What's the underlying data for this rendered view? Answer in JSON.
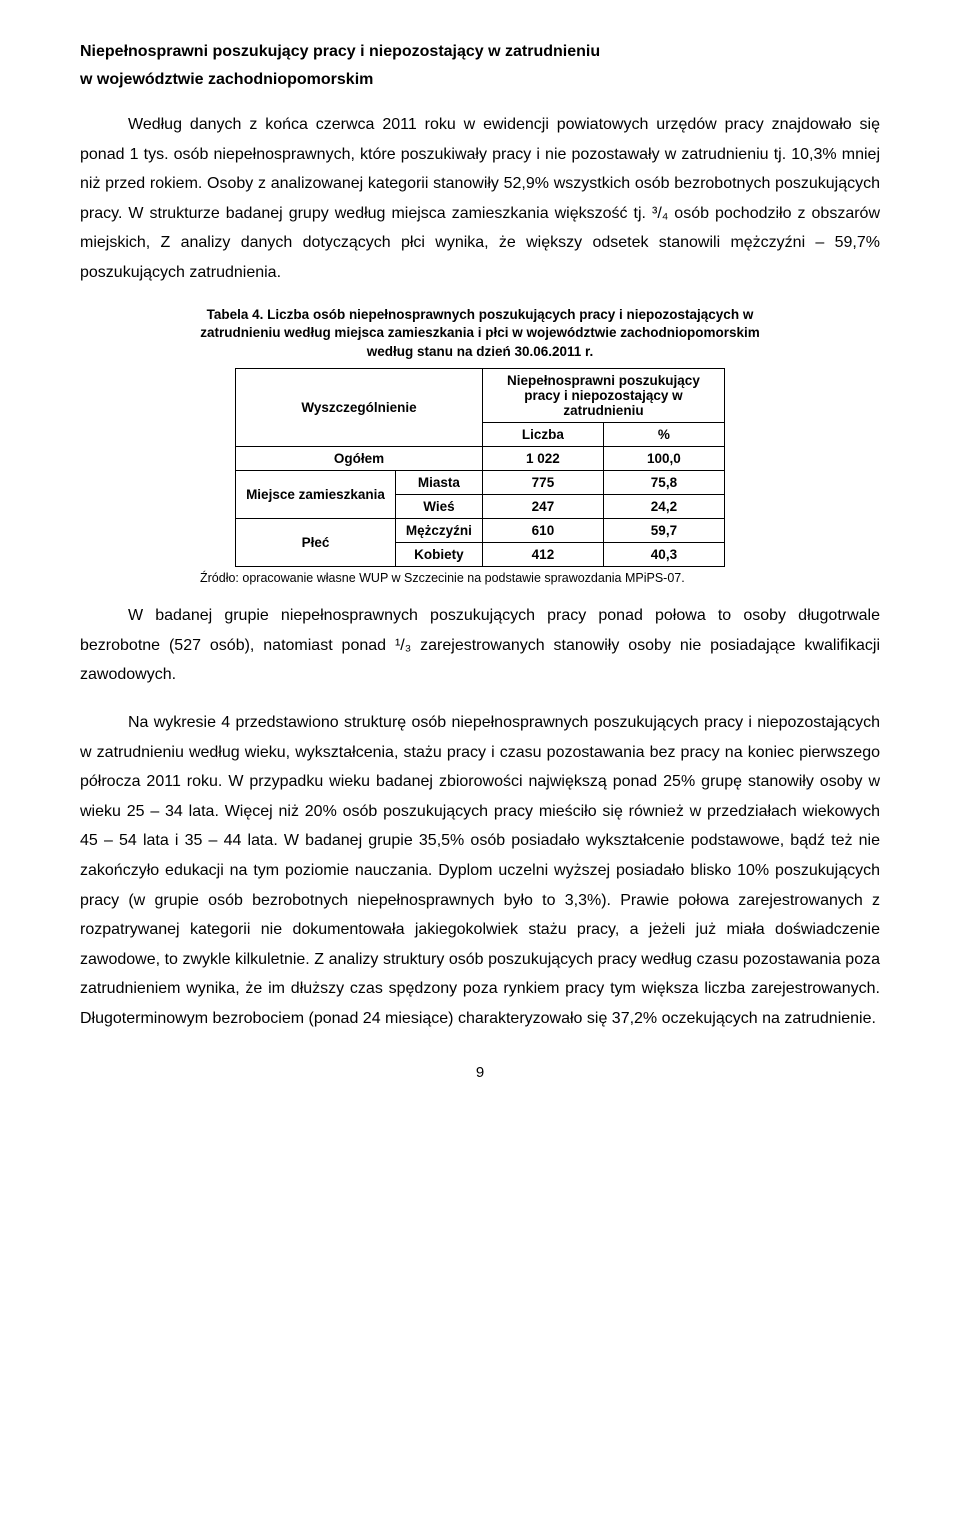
{
  "section": {
    "title": "Niepełnosprawni poszukujący pracy i niepozostający w zatrudnieniu",
    "subtitle": "w województwie zachodniopomorskim"
  },
  "para1": "Według danych z końca czerwca 2011 roku w ewidencji powiatowych urzędów pracy znajdowało się ponad 1 tys. osób niepełnosprawnych, które poszukiwały pracy i nie pozostawały w zatrudnieniu tj. 10,3% mniej niż przed rokiem. Osoby z analizowanej kategorii stanowiły 52,9% wszystkich osób bezrobotnych poszukujących pracy. W strukturze badanej grupy według miejsca zamieszkania większość tj. ³/₄ osób pochodziło z obszarów miejskich, Z analizy danych dotyczących płci wynika, że większy odsetek stanowili mężczyźni – 59,7% poszukujących zatrudnienia.",
  "table": {
    "caption": "Tabela 4. Liczba osób niepełnosprawnych poszukujących pracy i niepozostających w zatrudnieniu według miejsca zamieszkania i płci w województwie zachodniopomorskim według stanu na dzień 30.06.2011 r.",
    "header_wysz": "Wyszczególnienie",
    "header_group": "Niepełnosprawni poszukujący pracy i niepozostający w zatrudnieniu",
    "header_liczba": "Liczba",
    "header_pct": "%",
    "rows": {
      "ogolem": {
        "label": "Ogółem",
        "liczba": "1 022",
        "pct": "100,0"
      },
      "miejsce_label": "Miejsce zamieszkania",
      "miasta": {
        "label": "Miasta",
        "liczba": "775",
        "pct": "75,8"
      },
      "wies": {
        "label": "Wieś",
        "liczba": "247",
        "pct": "24,2"
      },
      "plec_label": "Płeć",
      "mezczyzni": {
        "label": "Mężczyźni",
        "liczba": "610",
        "pct": "59,7"
      },
      "kobiety": {
        "label": "Kobiety",
        "liczba": "412",
        "pct": "40,3"
      }
    },
    "source": "Źródło: opracowanie własne WUP w Szczecinie na podstawie sprawozdania MPiPS-07."
  },
  "para2": "W badanej grupie niepełnosprawnych poszukujących pracy ponad połowa to osoby długotrwale bezrobotne (527 osób), natomiast ponad ¹/₃ zarejestrowanych stanowiły osoby nie posiadające kwalifikacji zawodowych.",
  "para3": "Na wykresie 4 przedstawiono strukturę osób niepełnosprawnych poszukujących pracy i niepozostających w zatrudnieniu według wieku, wykształcenia, stażu pracy i czasu pozostawania bez pracy na koniec pierwszego półrocza 2011 roku. W przypadku wieku badanej zbiorowości największą ponad 25% grupę stanowiły osoby w wieku 25 – 34 lata. Więcej niż 20% osób poszukujących pracy mieściło się również w przedziałach wiekowych 45 – 54 lata i 35 – 44 lata. W badanej grupie 35,5% osób posiadało wykształcenie podstawowe, bądź też nie zakończyło edukacji na tym poziomie nauczania. Dyplom uczelni wyższej posiadało blisko 10% poszukujących pracy (w grupie osób bezrobotnych niepełnosprawnych było to 3,3%). Prawie połowa zarejestrowanych z rozpatrywanej kategorii nie dokumentowała jakiegokolwiek stażu pracy, a jeżeli już miała doświadczenie zawodowe, to zwykle kilkuletnie. Z analizy struktury osób poszukujących pracy według czasu pozostawania poza zatrudnieniem wynika, że im dłuższy czas spędzony poza rynkiem pracy tym większa liczba zarejestrowanych. Długoterminowym bezrobociem (ponad 24 miesiące) charakteryzowało się 37,2% oczekujących na zatrudnienie.",
  "page_number": "9"
}
